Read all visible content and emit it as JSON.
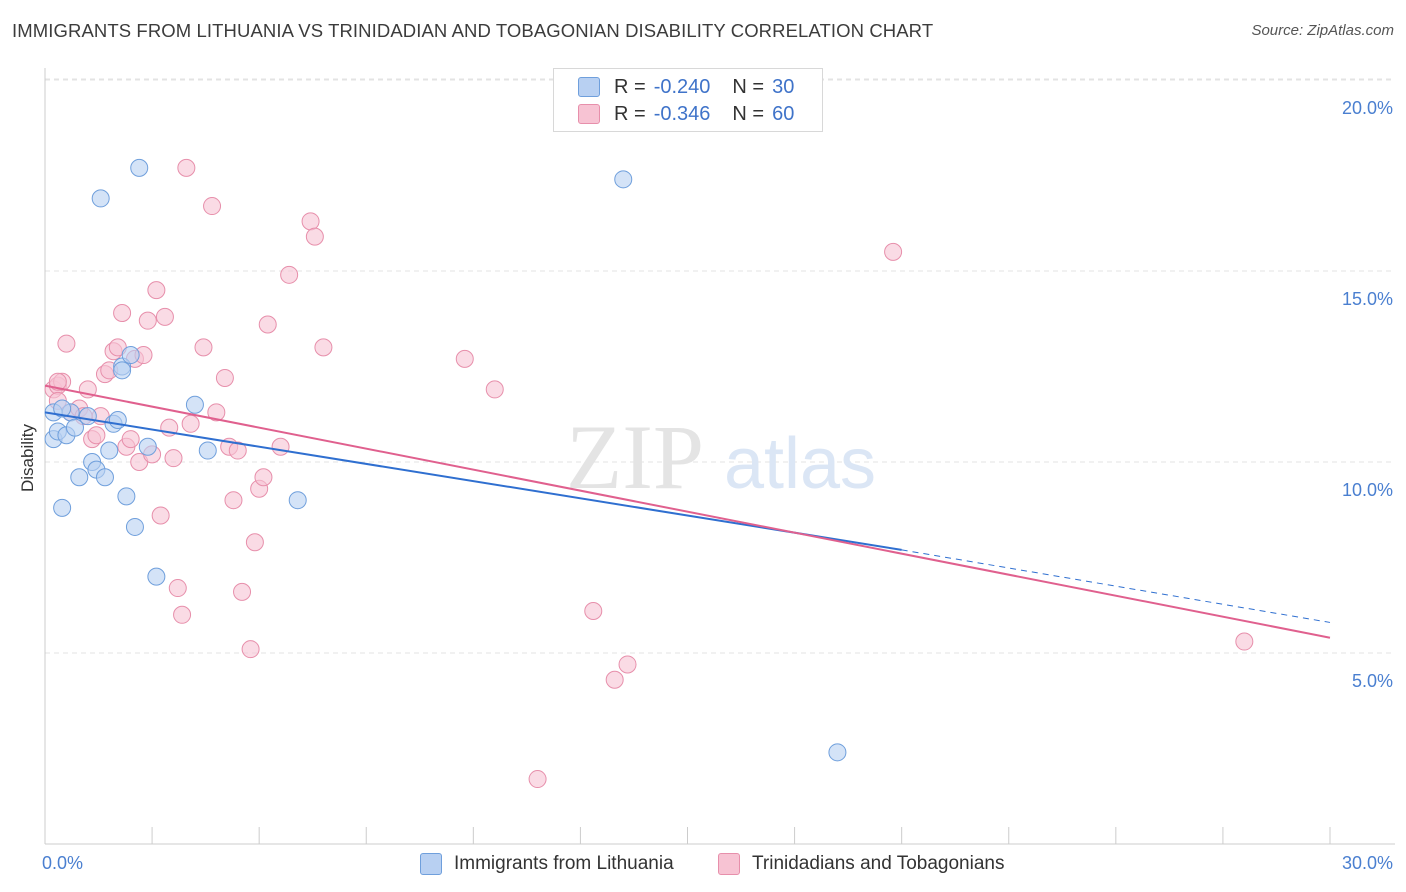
{
  "header": {
    "title": "IMMIGRANTS FROM LITHUANIA VS TRINIDADIAN AND TOBAGONIAN DISABILITY CORRELATION CHART",
    "source": "Source: ZipAtlas.com"
  },
  "watermark": {
    "zip": "ZIP",
    "atlas": "atlas"
  },
  "legend": {
    "series1": {
      "r_label": "R =",
      "r_value": "-0.240",
      "n_label": "N =",
      "n_value": "30"
    },
    "series2": {
      "r_label": "R =",
      "r_value": "-0.346",
      "n_label": "N =",
      "n_value": "60"
    }
  },
  "colors": {
    "blue_fill": "#b8d0f2",
    "blue_stroke": "#6f9fdc",
    "blue_line": "#2f6fd0",
    "pink_fill": "#f7c3d3",
    "pink_stroke": "#e78fab",
    "pink_line": "#e0608e",
    "grid": "#e3e3e3",
    "axis": "#cccccc",
    "tick_text": "#4a7fd0"
  },
  "chart_data": {
    "type": "scatter",
    "title": "IMMIGRANTS FROM LITHUANIA VS TRINIDADIAN AND TOBAGONIAN DISABILITY CORRELATION CHART",
    "xlabel": "",
    "ylabel": "Disability",
    "xlim": [
      0,
      30
    ],
    "ylim": [
      0,
      20
    ],
    "x_tick_labels": [
      "0.0%",
      "30.0%"
    ],
    "y_ticks": [
      5,
      10,
      15,
      20
    ],
    "y_tick_labels": [
      "5.0%",
      "10.0%",
      "15.0%",
      "20.0%"
    ],
    "series": [
      {
        "name": "Immigrants from Lithuania",
        "color": "blue",
        "points": [
          [
            0.2,
            11.3
          ],
          [
            0.2,
            10.6
          ],
          [
            0.3,
            10.8
          ],
          [
            0.4,
            8.8
          ],
          [
            0.5,
            10.7
          ],
          [
            0.6,
            11.3
          ],
          [
            0.7,
            10.9
          ],
          [
            0.8,
            9.6
          ],
          [
            1.0,
            11.2
          ],
          [
            1.1,
            10.0
          ],
          [
            1.2,
            9.8
          ],
          [
            1.3,
            16.9
          ],
          [
            1.4,
            9.6
          ],
          [
            1.5,
            10.3
          ],
          [
            1.6,
            11.0
          ],
          [
            1.7,
            11.1
          ],
          [
            1.8,
            12.5
          ],
          [
            1.9,
            9.1
          ],
          [
            2.0,
            12.8
          ],
          [
            2.1,
            8.3
          ],
          [
            2.2,
            17.7
          ],
          [
            2.4,
            10.4
          ],
          [
            2.6,
            7.0
          ],
          [
            3.5,
            11.5
          ],
          [
            3.8,
            10.3
          ],
          [
            5.9,
            9.0
          ],
          [
            13.5,
            17.4
          ],
          [
            18.5,
            2.4
          ],
          [
            1.8,
            12.4
          ],
          [
            0.4,
            11.4
          ]
        ],
        "trend": {
          "x": [
            0,
            20
          ],
          "y": [
            11.3,
            7.7
          ]
        },
        "trend_dashed": {
          "x": [
            20,
            30
          ],
          "y": [
            7.7,
            5.8
          ]
        }
      },
      {
        "name": "Trinidadians and Tobagonians",
        "color": "pink",
        "points": [
          [
            0.2,
            11.9
          ],
          [
            0.3,
            12.0
          ],
          [
            0.3,
            11.6
          ],
          [
            0.4,
            12.1
          ],
          [
            0.5,
            13.1
          ],
          [
            0.6,
            11.3
          ],
          [
            0.8,
            11.4
          ],
          [
            0.9,
            11.2
          ],
          [
            1.0,
            11.9
          ],
          [
            1.1,
            10.6
          ],
          [
            1.2,
            10.7
          ],
          [
            1.3,
            11.2
          ],
          [
            1.4,
            12.3
          ],
          [
            1.5,
            12.4
          ],
          [
            1.6,
            12.9
          ],
          [
            1.7,
            13.0
          ],
          [
            1.8,
            13.9
          ],
          [
            1.9,
            10.4
          ],
          [
            2.0,
            10.6
          ],
          [
            2.1,
            12.7
          ],
          [
            2.2,
            10.0
          ],
          [
            2.3,
            12.8
          ],
          [
            2.4,
            13.7
          ],
          [
            2.5,
            10.2
          ],
          [
            2.6,
            14.5
          ],
          [
            2.7,
            8.6
          ],
          [
            2.8,
            13.8
          ],
          [
            2.9,
            10.9
          ],
          [
            3.0,
            10.1
          ],
          [
            3.1,
            6.7
          ],
          [
            3.2,
            6.0
          ],
          [
            3.3,
            17.7
          ],
          [
            3.4,
            11.0
          ],
          [
            3.7,
            13.0
          ],
          [
            3.9,
            16.7
          ],
          [
            4.0,
            11.3
          ],
          [
            4.2,
            12.2
          ],
          [
            4.3,
            10.4
          ],
          [
            4.4,
            9.0
          ],
          [
            4.5,
            10.3
          ],
          [
            4.6,
            6.6
          ],
          [
            4.8,
            5.1
          ],
          [
            4.9,
            7.9
          ],
          [
            5.0,
            9.3
          ],
          [
            5.1,
            9.6
          ],
          [
            5.2,
            13.6
          ],
          [
            5.5,
            10.4
          ],
          [
            5.7,
            14.9
          ],
          [
            6.2,
            16.3
          ],
          [
            6.3,
            15.9
          ],
          [
            6.5,
            13.0
          ],
          [
            9.8,
            12.7
          ],
          [
            10.5,
            11.9
          ],
          [
            11.5,
            1.7
          ],
          [
            12.8,
            6.1
          ],
          [
            13.3,
            4.3
          ],
          [
            13.6,
            4.7
          ],
          [
            19.8,
            15.5
          ],
          [
            28.0,
            5.3
          ],
          [
            0.3,
            12.1
          ]
        ],
        "trend": {
          "x": [
            0,
            30
          ],
          "y": [
            12.0,
            5.4
          ]
        }
      }
    ]
  },
  "bottom_legend": {
    "item1": "Immigrants from Lithuania",
    "item2": "Trinidadians and Tobagonians"
  }
}
